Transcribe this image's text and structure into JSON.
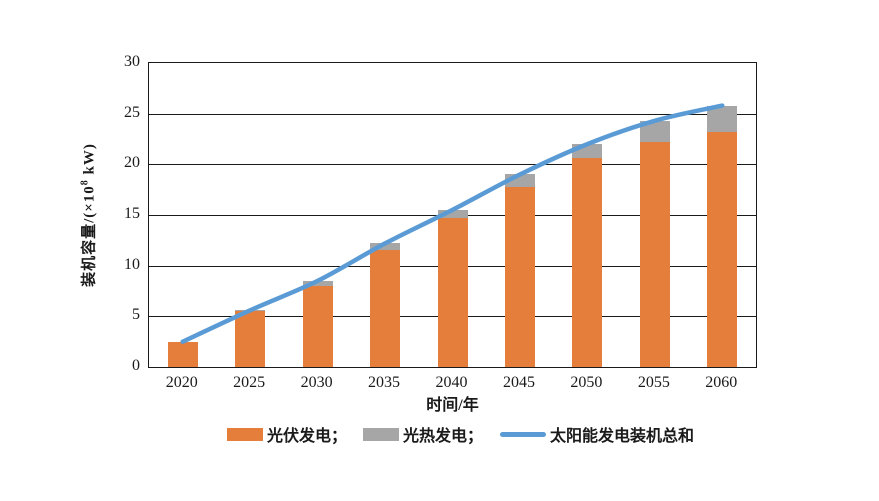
{
  "chart": {
    "y_title_prefix": "装机容量/(×10",
    "y_title_sup": "8",
    "y_title_suffix": " kW)",
    "x_title": "时间/年"
  },
  "chart_data": {
    "type": "bar",
    "stacked": true,
    "title": "",
    "xlabel": "时间/年",
    "ylabel": "装机容量/(×10⁸ kW)",
    "ylim": [
      0,
      30
    ],
    "ytick_interval": 5,
    "grid": true,
    "legend_position": "bottom",
    "categories": [
      "2020",
      "2025",
      "2030",
      "2035",
      "2040",
      "2045",
      "2050",
      "2055",
      "2060"
    ],
    "series": [
      {
        "name": "光伏发电",
        "kind": "bar",
        "color": "#E57E3B",
        "values": [
          2.5,
          5.5,
          8.0,
          11.6,
          14.7,
          17.8,
          20.6,
          22.2,
          23.2
        ]
      },
      {
        "name": "光热发电",
        "kind": "bar",
        "color": "#A6A6A6",
        "values": [
          0,
          0.1,
          0.5,
          0.6,
          0.8,
          1.2,
          1.4,
          2.1,
          2.6
        ]
      },
      {
        "name": "太阳能发电装机总和",
        "kind": "line",
        "color": "#5B9BD5",
        "values": [
          2.5,
          5.6,
          8.5,
          12.2,
          15.5,
          19.0,
          22.0,
          24.3,
          25.8
        ]
      }
    ]
  },
  "legend": {
    "items": [
      {
        "label": "光伏发电；",
        "kind": "bar",
        "color": "#E57E3B"
      },
      {
        "label": "光热发电；",
        "kind": "bar",
        "color": "#A6A6A6"
      },
      {
        "label": "太阳能发电装机总和",
        "kind": "line",
        "color": "#5B9BD5"
      }
    ]
  }
}
